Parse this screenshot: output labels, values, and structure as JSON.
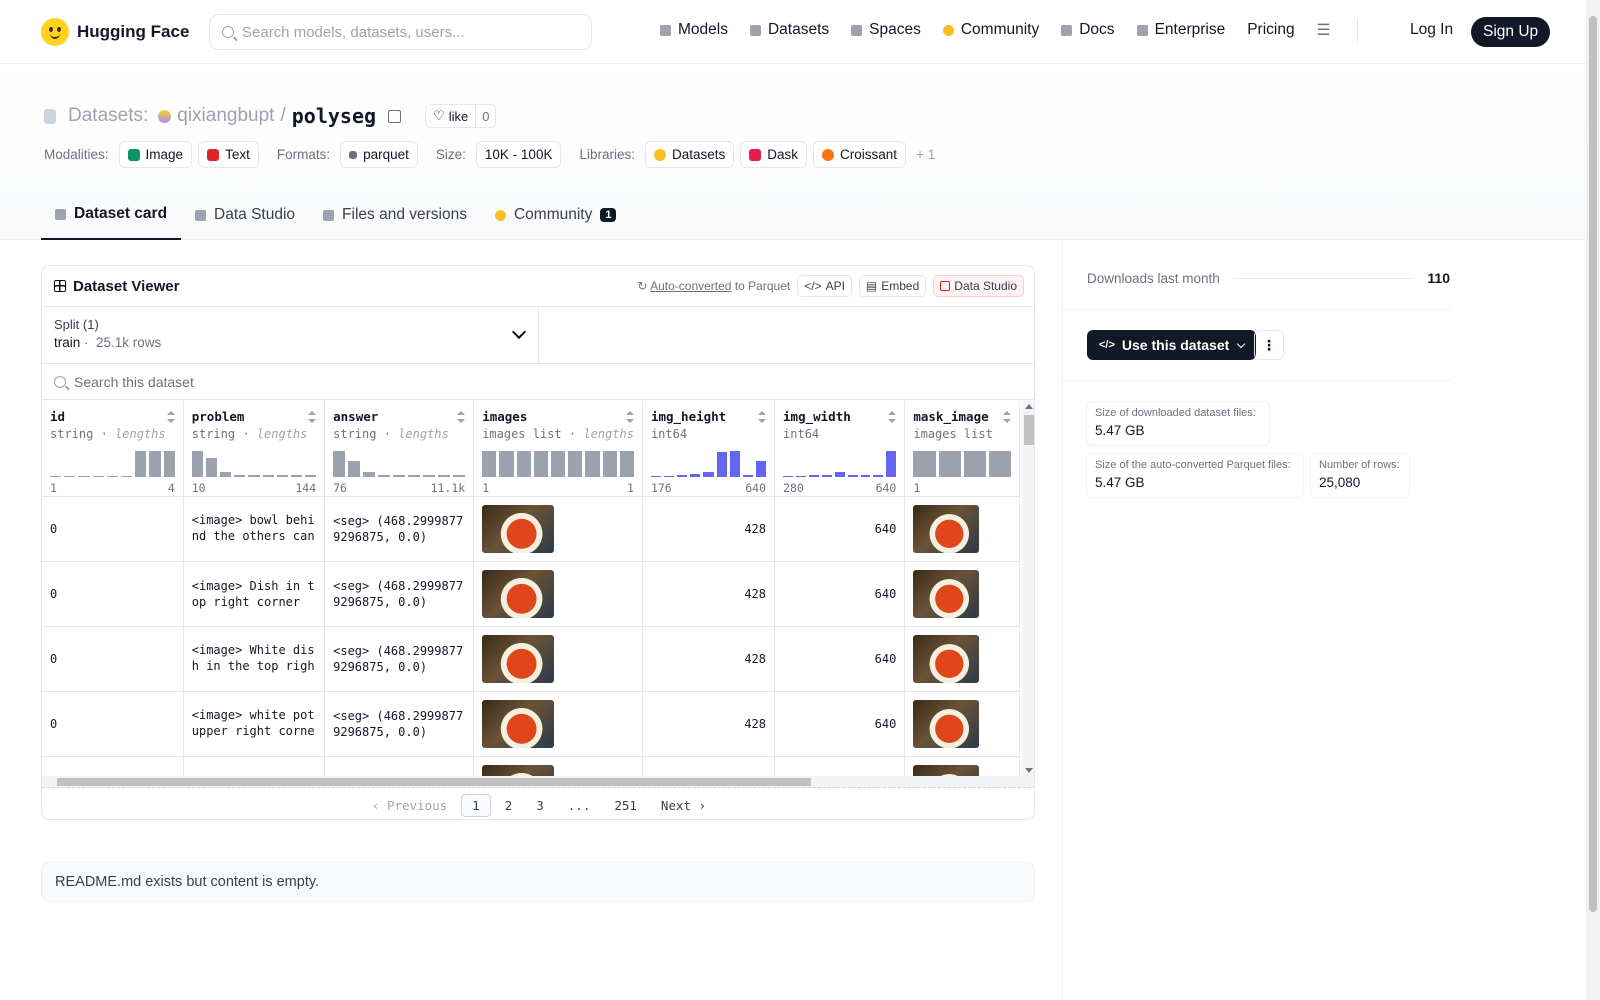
{
  "header": {
    "brand": "Hugging Face",
    "search_placeholder": "Search models, datasets, users...",
    "nav": [
      "Models",
      "Datasets",
      "Spaces",
      "Community",
      "Docs",
      "Enterprise",
      "Pricing"
    ],
    "login": "Log In",
    "signup": "Sign Up"
  },
  "repo": {
    "kind": "Datasets:",
    "owner": "qixiangbupt",
    "sep": "/",
    "name": "polyseg",
    "like_label": "like",
    "like_count": "0"
  },
  "tags": {
    "modalities_label": "Modalities:",
    "modalities": [
      "Image",
      "Text"
    ],
    "formats_label": "Formats:",
    "formats": [
      "parquet"
    ],
    "size_label": "Size:",
    "size": "10K - 100K",
    "libraries_label": "Libraries:",
    "libraries": [
      "Datasets",
      "Dask",
      "Croissant"
    ],
    "more": "+ 1"
  },
  "tabs": [
    {
      "label": "Dataset card",
      "active": true
    },
    {
      "label": "Data Studio"
    },
    {
      "label": "Files and versions"
    },
    {
      "label": "Community",
      "badge": "1"
    }
  ],
  "viewer": {
    "title": "Dataset Viewer",
    "auto_converted": "Auto-converted",
    "to_parquet": "to Parquet",
    "api": "API",
    "embed": "Embed",
    "data_studio": "Data Studio",
    "split_label": "Split (1)",
    "split_name": "train",
    "split_rows": "25.1k rows",
    "search_placeholder": "Search this dataset",
    "columns": [
      {
        "name": "id",
        "type": "string",
        "sub": "lengths",
        "min": "1",
        "max": "4",
        "hist": [
          0.05,
          0.05,
          0.05,
          0.05,
          0.05,
          0.05,
          1,
          1,
          1
        ],
        "blue": false
      },
      {
        "name": "problem",
        "type": "string",
        "sub": "lengths",
        "min": "10",
        "max": "144",
        "hist": [
          1,
          0.75,
          0.2,
          0.06,
          0.06,
          0.06,
          0.06,
          0.06,
          0.06
        ],
        "blue": false
      },
      {
        "name": "answer",
        "type": "string",
        "sub": "lengths",
        "min": "76",
        "max": "11.1k",
        "hist": [
          1,
          0.6,
          0.2,
          0.06,
          0.06,
          0.06,
          0.06,
          0.06,
          0.06
        ],
        "blue": false
      },
      {
        "name": "images",
        "type": "images list",
        "sub": "lengths",
        "min": "1",
        "max": "1",
        "hist": [
          1,
          1,
          1,
          1,
          1,
          1,
          1,
          1,
          1
        ],
        "blue": false
      },
      {
        "name": "img_height",
        "type": "int64",
        "sub": "",
        "min": "176",
        "max": "640",
        "hist": [
          0.04,
          0.04,
          0.06,
          0.12,
          0.2,
          0.95,
          1,
          0.08,
          0.6
        ],
        "blue": true
      },
      {
        "name": "img_width",
        "type": "int64",
        "sub": "",
        "min": "280",
        "max": "640",
        "hist": [
          0.04,
          0.04,
          0.06,
          0.06,
          0.18,
          0.06,
          0.06,
          0.06,
          1
        ],
        "blue": true
      },
      {
        "name": "mask_image",
        "type": "images list",
        "sub": "",
        "min": "1",
        "max": "",
        "hist": [
          1,
          1,
          1,
          1
        ],
        "blue": false
      }
    ],
    "rows": [
      {
        "id": "0",
        "problem": "<image> bowl behind the others can only see part",
        "answer": "<seg> (468.29998779296875, 0.0)",
        "img_height": "428",
        "img_width": "640"
      },
      {
        "id": "0",
        "problem": "<image> Dish in top right corner",
        "answer": "<seg> (468.29998779296875, 0.0)",
        "img_height": "428",
        "img_width": "640"
      },
      {
        "id": "0",
        "problem": "<image> White dish in the top right corner",
        "answer": "<seg> (468.29998779296875, 0.0)",
        "img_height": "428",
        "img_width": "640"
      },
      {
        "id": "0",
        "problem": "<image> white pot upper right corner",
        "answer": "<seg> (468.29998779296875, 0.0)",
        "img_height": "428",
        "img_width": "640"
      }
    ],
    "pager": {
      "prev": "Previous",
      "pages": [
        "1",
        "2",
        "3",
        "...",
        "251"
      ],
      "next": "Next"
    }
  },
  "readme": "README.md exists but content is empty.",
  "sidebar": {
    "downloads_label": "Downloads last month",
    "downloads_value": "110",
    "use_button": "Use this dataset",
    "more_button": "⋮",
    "size_downloaded_label": "Size of downloaded dataset files:",
    "size_downloaded": "5.47 GB",
    "size_parquet_label": "Size of the auto-converted Parquet files:",
    "size_parquet": "5.47 GB",
    "num_rows_label": "Number of rows:",
    "num_rows": "25,080"
  }
}
